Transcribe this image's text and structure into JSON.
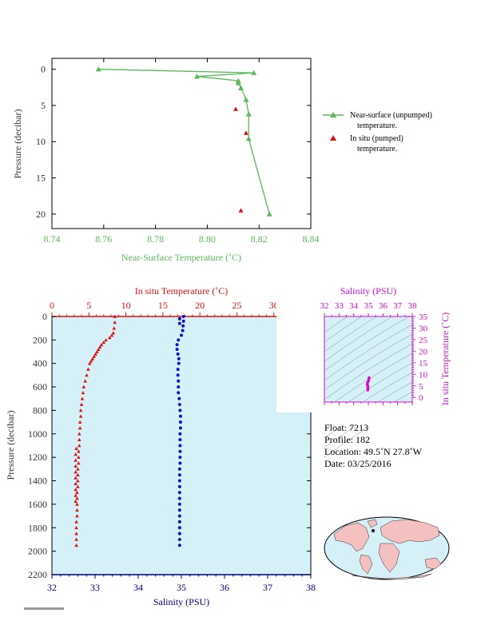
{
  "colors": {
    "green": "#5cb85c",
    "red": "#e01010",
    "blue": "#1010d0",
    "magenta": "#d010d0",
    "navy": "#000080",
    "plot_bg": "#d6f0f8",
    "land": "#f5c0c0",
    "ocean": "#d6f0f8"
  },
  "chart_data": [
    {
      "type": "line",
      "xlabel": "Near-Surface Temperature (˚C)",
      "ylabel": "Pressure (decibar)",
      "xlim": [
        8.74,
        8.84
      ],
      "ylim": [
        22,
        -1.5
      ],
      "xticks": [
        "8.74",
        "8.76",
        "8.78",
        "8.80",
        "8.82",
        "8.84"
      ],
      "yticks": [
        "0",
        "5",
        "10",
        "15",
        "20"
      ],
      "grid": false,
      "legend_position": "right",
      "series": [
        {
          "name": "Near-surface (unpumped) temperature.",
          "marker": "triangle",
          "x": [
            8.758,
            8.818,
            8.796,
            8.812,
            8.812,
            8.813,
            8.815,
            8.816,
            8.816,
            8.824
          ],
          "y": [
            0.0,
            0.5,
            1.0,
            1.6,
            1.9,
            2.6,
            4.2,
            6.2,
            9.6,
            20.0
          ]
        },
        {
          "name": "In situ (pumped) temperature.",
          "marker": "triangle",
          "x": [
            8.811,
            8.815,
            8.813
          ],
          "y": [
            5.5,
            8.8,
            19.5
          ]
        }
      ]
    },
    {
      "type": "scatter",
      "title": "In situ Temperature (˚C)",
      "xlabel": "Salinity (PSU)",
      "ylabel": "Pressure (decibar)",
      "temp_xlim": [
        0,
        35
      ],
      "sal_xlim": [
        32,
        38
      ],
      "ylim": [
        2200,
        0
      ],
      "temp_ticks": [
        "0",
        "5",
        "10",
        "15",
        "20",
        "25",
        "30",
        "35"
      ],
      "sal_ticks": [
        "32",
        "33",
        "34",
        "35",
        "36",
        "37",
        "38"
      ],
      "yticks": [
        "0",
        "200",
        "400",
        "600",
        "800",
        "1000",
        "1200",
        "1400",
        "1600",
        "1800",
        "2000",
        "2200"
      ],
      "grid": false,
      "series": [
        {
          "name": "In situ Temperature",
          "marker": "triangle",
          "x": [
            8.5,
            8.5,
            8.4,
            8.3,
            8.1,
            7.8,
            7.3,
            7.0,
            6.7,
            6.5,
            6.3,
            6.1,
            5.9,
            5.7,
            5.5,
            5.3,
            5.1,
            4.9,
            4.7,
            4.5,
            4.3,
            4.2,
            4.1,
            4.0,
            3.9,
            3.9,
            3.8,
            3.8,
            3.7,
            3.7,
            3.7,
            3.6,
            3.6,
            3.6,
            3.5,
            3.5,
            3.5,
            3.5,
            3.4,
            3.4,
            3.4,
            3.4,
            3.4,
            3.3,
            3.3,
            3.3,
            3.3,
            3.3,
            3.3,
            3.2,
            3.2,
            3.2,
            3.2,
            3.2,
            3.2,
            3.2,
            3.2,
            3.2
          ],
          "y": [
            0,
            50,
            100,
            140,
            160,
            180,
            200,
            220,
            240,
            260,
            280,
            300,
            320,
            340,
            360,
            380,
            400,
            450,
            500,
            550,
            600,
            650,
            700,
            750,
            800,
            850,
            900,
            950,
            1000,
            1050,
            1100,
            1150,
            1200,
            1250,
            1300,
            1350,
            1400,
            1450,
            1500,
            1550,
            1600,
            1650,
            1700,
            1750,
            1800,
            1850,
            1900,
            1950,
            1125,
            1175,
            1225,
            1275,
            1325,
            1375,
            1425,
            1475,
            1525,
            1575
          ]
        },
        {
          "name": "Salinity",
          "marker": "circle",
          "x": [
            35.05,
            35.05,
            35.04,
            35.03,
            35.0,
            34.93,
            34.9,
            34.9,
            34.92,
            34.94,
            34.94,
            34.92,
            34.92,
            34.93,
            34.93,
            34.93,
            34.95,
            34.96,
            34.97,
            34.98,
            34.98,
            34.98,
            34.97,
            34.97,
            34.97,
            34.97,
            34.97,
            34.97,
            34.96,
            34.96,
            34.96,
            34.96,
            34.96,
            34.96,
            34.96,
            34.96,
            34.96,
            34.96,
            34.96,
            34.96,
            34.96,
            34.96,
            34.96,
            34.96
          ],
          "y": [
            0,
            40,
            80,
            120,
            160,
            200,
            240,
            280,
            320,
            360,
            400,
            450,
            500,
            550,
            600,
            650,
            700,
            750,
            800,
            850,
            900,
            950,
            1000,
            1050,
            1100,
            1150,
            1200,
            1250,
            1300,
            1350,
            1400,
            1450,
            1500,
            1550,
            1600,
            1650,
            1700,
            1750,
            1800,
            1850,
            1900,
            1950,
            20,
            60
          ]
        }
      ]
    },
    {
      "type": "scatter",
      "title": "Salinity (PSU)",
      "ylabel": "In situ Temperature (˚C)",
      "xlim": [
        32,
        38
      ],
      "ylim": [
        -2,
        35
      ],
      "xticks": [
        "32",
        "33",
        "34",
        "35",
        "36",
        "37",
        "38"
      ],
      "yticks": [
        "0",
        "5",
        "10",
        "15",
        "20",
        "25",
        "30",
        "35"
      ],
      "series": [
        {
          "name": "T-S",
          "x": [
            35.05,
            35.04,
            35.0,
            34.94,
            34.93,
            34.96,
            34.97,
            34.97,
            34.96,
            34.96
          ],
          "y": [
            8.5,
            8.0,
            7.0,
            6.3,
            5.5,
            5.0,
            4.4,
            4.0,
            3.6,
            3.2
          ]
        }
      ]
    }
  ],
  "float_info": {
    "float": "Float:  7213",
    "profile": "Profile:  182",
    "location": "Location:  49.5˚N  27.8˚W",
    "date": "Date:  03/25/2016"
  }
}
